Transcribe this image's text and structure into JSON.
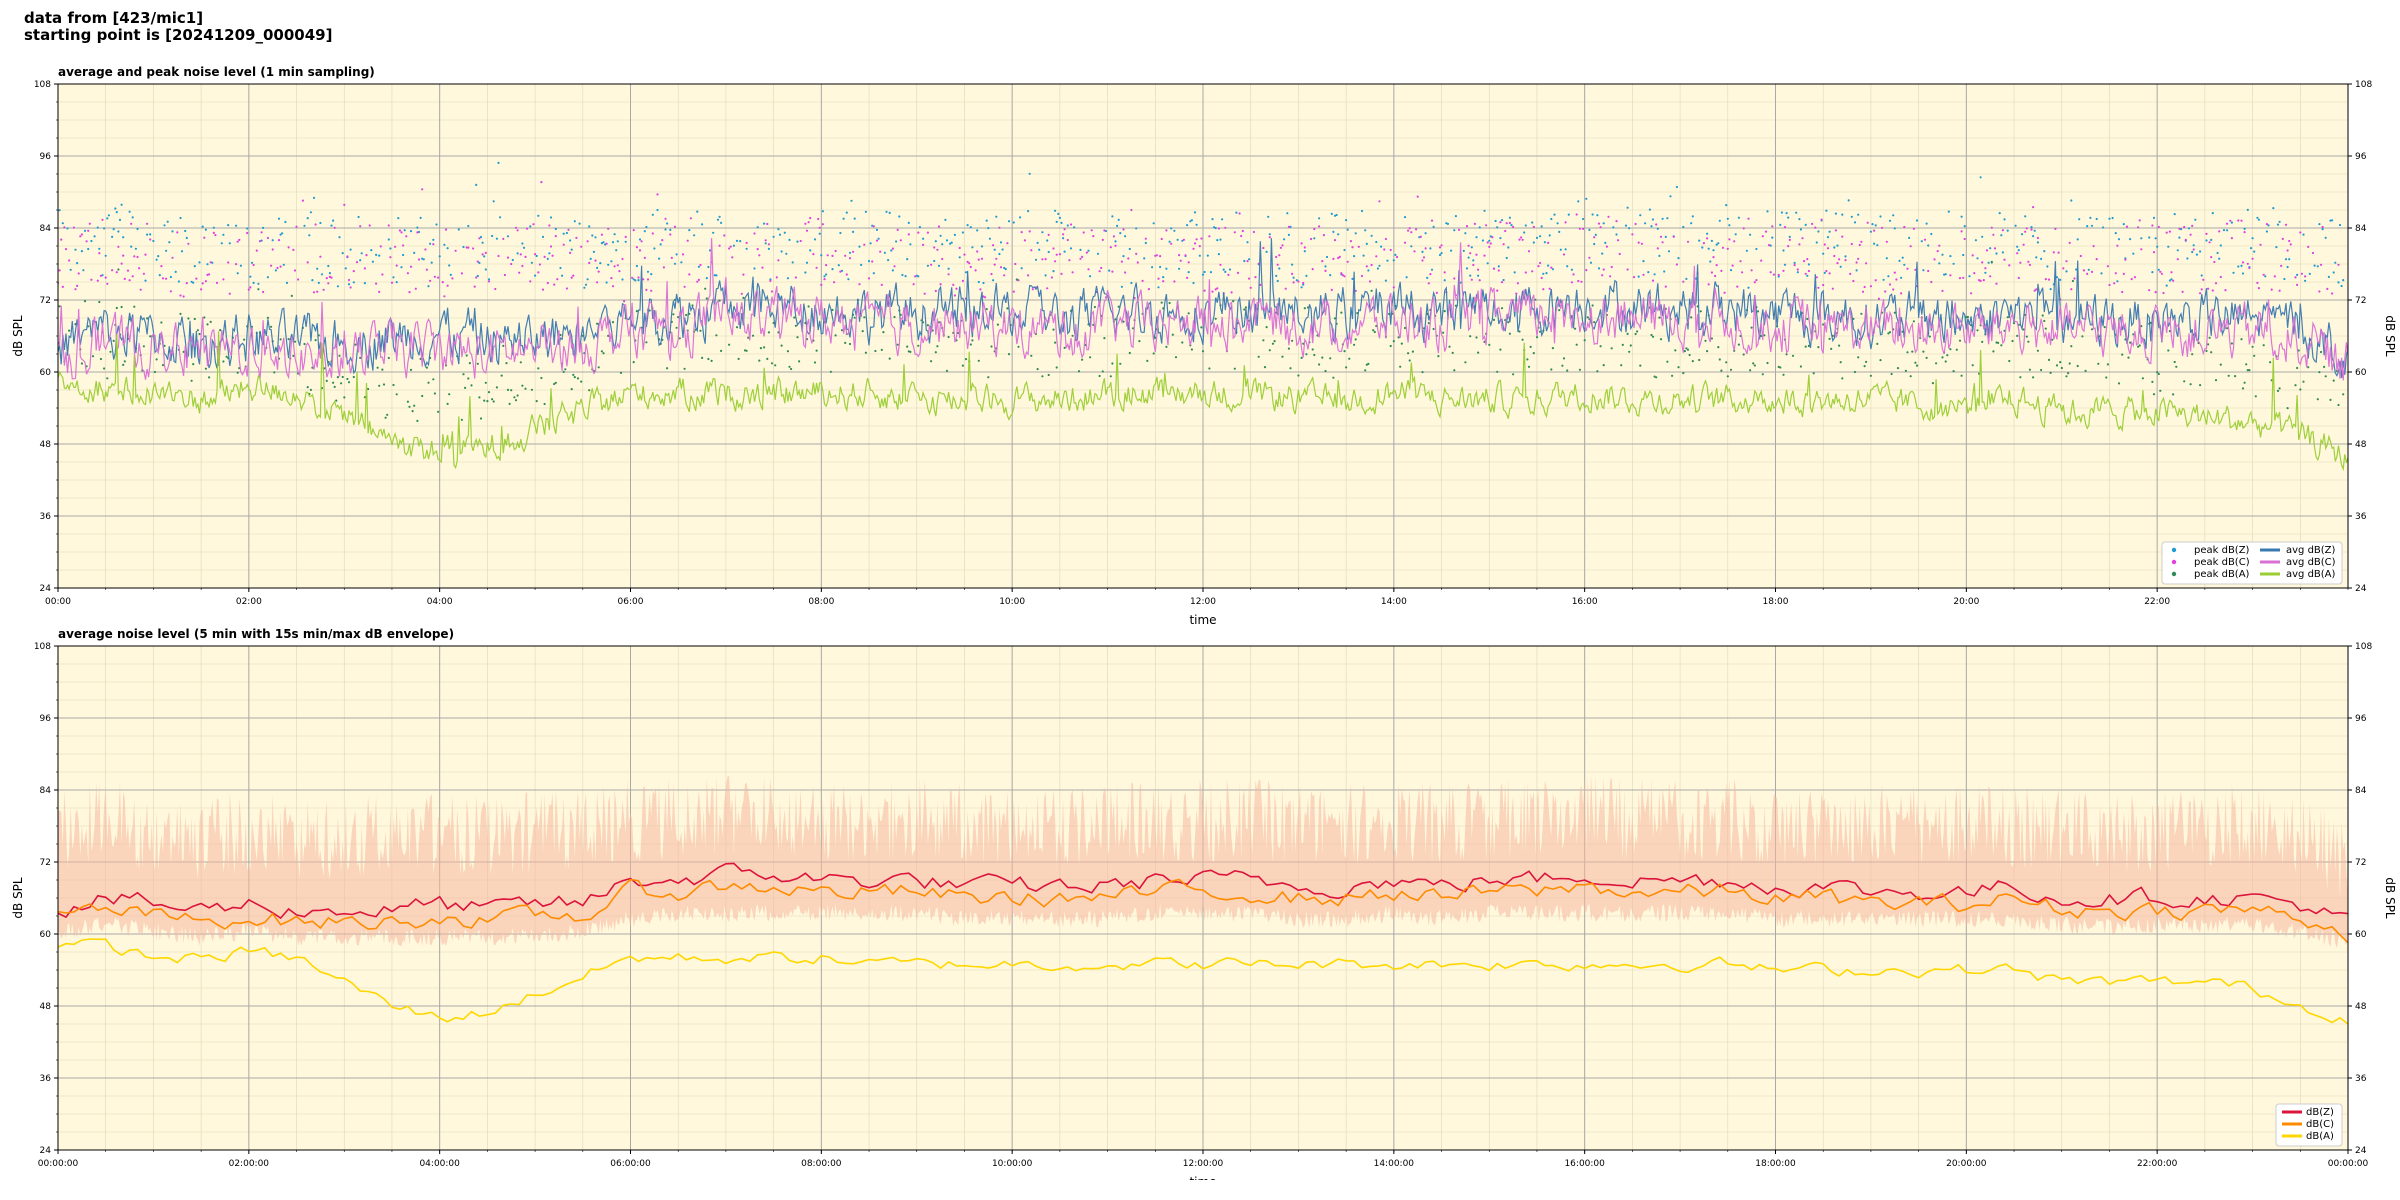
{
  "header": {
    "line1": "data from [423/mic1]",
    "line2": "starting point is [20241209_000049]"
  },
  "chart_data": [
    {
      "type": "line",
      "title": "average and peak noise level (1 min sampling)",
      "xlabel": "time",
      "ylabel": "dB SPL",
      "xlim": [
        0,
        24
      ],
      "ylim": [
        24,
        108
      ],
      "yticks": [
        24,
        36,
        48,
        60,
        72,
        84,
        96,
        108
      ],
      "xticks": [
        "00:00",
        "02:00",
        "04:00",
        "06:00",
        "08:00",
        "10:00",
        "12:00",
        "14:00",
        "16:00",
        "18:00",
        "20:00",
        "22:00"
      ],
      "grid": true,
      "background": "#fff8dc",
      "legend_position": "lower-right",
      "x_hours": [
        0,
        0.5,
        1,
        1.5,
        2,
        2.5,
        3,
        3.5,
        4,
        4.5,
        5,
        5.5,
        6,
        6.5,
        7,
        7.5,
        8,
        8.5,
        9,
        9.5,
        10,
        10.5,
        11,
        11.5,
        12,
        12.5,
        13,
        13.5,
        14,
        14.5,
        15,
        15.5,
        16,
        16.5,
        17,
        17.5,
        18,
        18.5,
        19,
        19.5,
        20,
        20.5,
        21,
        21.5,
        22,
        22.5,
        23,
        23.5,
        24
      ],
      "series": [
        {
          "name": "peak dB(Z)",
          "kind": "scatter",
          "color": "#1f9bd1",
          "values": [
            80,
            82,
            81,
            79,
            80,
            81,
            80,
            81,
            80,
            80,
            81,
            80,
            81,
            82,
            81,
            81,
            82,
            81,
            81,
            80,
            81,
            81,
            80,
            80,
            81,
            81,
            80,
            81,
            81,
            80,
            81,
            81,
            83,
            82,
            81,
            82,
            81,
            81,
            80,
            81,
            81,
            81,
            80,
            80,
            81,
            81,
            82,
            81,
            80
          ]
        },
        {
          "name": "peak dB(C)",
          "kind": "scatter",
          "color": "#e040e0",
          "values": [
            78,
            80,
            79,
            77,
            78,
            79,
            78,
            79,
            78,
            78,
            79,
            78,
            79,
            80,
            79,
            79,
            80,
            79,
            79,
            78,
            79,
            79,
            78,
            78,
            79,
            79,
            78,
            79,
            79,
            78,
            79,
            79,
            81,
            80,
            79,
            80,
            79,
            79,
            78,
            79,
            79,
            79,
            78,
            78,
            79,
            79,
            80,
            79,
            78
          ]
        },
        {
          "name": "peak dB(A)",
          "kind": "scatter",
          "color": "#2e8b57",
          "values": [
            66,
            66,
            65,
            64,
            64,
            62,
            60,
            58,
            57,
            58,
            60,
            62,
            66,
            66,
            67,
            66,
            66,
            66,
            65,
            65,
            65,
            65,
            65,
            66,
            66,
            66,
            65,
            65,
            65,
            65,
            66,
            65,
            66,
            65,
            65,
            65,
            65,
            65,
            64,
            64,
            64,
            65,
            63,
            63,
            62,
            62,
            62,
            61,
            60
          ]
        },
        {
          "name": "avg dB(Z)",
          "kind": "line",
          "color": "#3a78b0",
          "values": [
            64,
            66,
            65,
            64,
            65,
            64,
            64,
            65,
            66,
            64,
            65,
            66,
            68,
            69,
            70,
            70,
            70,
            69,
            69,
            69,
            69,
            68,
            69,
            69,
            70,
            70,
            69,
            69,
            70,
            69,
            70,
            70,
            71,
            70,
            70,
            70,
            69,
            69,
            68,
            68,
            68,
            69,
            68,
            68,
            68,
            68,
            68,
            67,
            62
          ]
        },
        {
          "name": "avg dB(C)",
          "kind": "line",
          "color": "#da70d6",
          "values": [
            62,
            64,
            63,
            62,
            63,
            62,
            62,
            63,
            63,
            62,
            63,
            64,
            66,
            67,
            68,
            68,
            68,
            67,
            67,
            67,
            67,
            66,
            67,
            67,
            68,
            68,
            67,
            67,
            68,
            67,
            68,
            68,
            69,
            68,
            68,
            68,
            67,
            67,
            66,
            66,
            66,
            67,
            66,
            66,
            66,
            66,
            66,
            65,
            60
          ]
        },
        {
          "name": "avg dB(A)",
          "kind": "line",
          "color": "#9acd32",
          "values": [
            58,
            57,
            56,
            55,
            57,
            56,
            52,
            48,
            46,
            47,
            50,
            53,
            56,
            56,
            56,
            56,
            56,
            56,
            55,
            55,
            55,
            55,
            56,
            56,
            56,
            56,
            55,
            55,
            56,
            55,
            55,
            55,
            56,
            55,
            55,
            55,
            55,
            55,
            55,
            54,
            54,
            55,
            53,
            53,
            53,
            52,
            51,
            49,
            45
          ]
        }
      ]
    },
    {
      "type": "line",
      "title": "average noise level (5 min with 15s min/max dB envelope)",
      "xlabel": "time",
      "ylabel": "dB SPL",
      "xlim": [
        0,
        24
      ],
      "ylim": [
        24,
        108
      ],
      "yticks": [
        24,
        36,
        48,
        60,
        72,
        84,
        96,
        108
      ],
      "xticks": [
        "00:00:00",
        "02:00:00",
        "04:00:00",
        "06:00:00",
        "08:00:00",
        "10:00:00",
        "12:00:00",
        "14:00:00",
        "16:00:00",
        "18:00:00",
        "20:00:00",
        "22:00:00",
        "00:00:00"
      ],
      "grid": true,
      "background": "#fff8dc",
      "legend_position": "lower-right",
      "envelope_color": "#f5b7a0",
      "x_hours": [
        0,
        0.5,
        1,
        1.5,
        2,
        2.5,
        3,
        3.5,
        4,
        4.5,
        5,
        5.5,
        6,
        6.5,
        7,
        7.5,
        8,
        8.5,
        9,
        9.5,
        10,
        10.5,
        11,
        11.5,
        12,
        12.5,
        13,
        13.5,
        14,
        14.5,
        15,
        15.5,
        16,
        16.5,
        17,
        17.5,
        18,
        18.5,
        19,
        19.5,
        20,
        20.5,
        21,
        21.5,
        22,
        22.5,
        23,
        23.5,
        24
      ],
      "envelope_min": [
        59,
        60,
        59,
        58,
        59,
        58,
        58,
        58,
        58,
        58,
        58,
        59,
        61,
        62,
        62,
        62,
        62,
        62,
        62,
        61,
        61,
        61,
        61,
        62,
        62,
        62,
        61,
        61,
        62,
        61,
        62,
        62,
        62,
        62,
        62,
        62,
        61,
        61,
        61,
        61,
        61,
        61,
        60,
        60,
        60,
        60,
        60,
        59,
        57
      ],
      "envelope_max": [
        84,
        86,
        84,
        83,
        84,
        83,
        83,
        84,
        84,
        83,
        84,
        84,
        86,
        86,
        87,
        87,
        86,
        86,
        86,
        85,
        85,
        85,
        85,
        86,
        86,
        86,
        85,
        85,
        86,
        85,
        86,
        86,
        87,
        86,
        86,
        86,
        85,
        85,
        85,
        85,
        85,
        85,
        84,
        84,
        84,
        85,
        85,
        84,
        78
      ],
      "series": [
        {
          "name": "dB(Z)",
          "color": "#dc143c",
          "values": [
            64,
            66,
            65,
            64,
            65,
            64,
            64,
            64,
            65,
            64,
            65,
            65,
            69,
            69,
            70,
            70,
            69,
            69,
            69,
            68,
            68,
            68,
            68,
            69,
            69,
            69,
            68,
            68,
            69,
            68,
            69,
            69,
            70,
            69,
            69,
            69,
            68,
            68,
            67,
            67,
            67,
            68,
            66,
            66,
            66,
            66,
            66,
            65,
            62
          ]
        },
        {
          "name": "dB(C)",
          "color": "#ff8c00",
          "values": [
            63,
            64,
            63,
            62,
            63,
            62,
            62,
            62,
            63,
            62,
            63,
            63,
            67,
            67,
            68,
            68,
            67,
            67,
            67,
            66,
            66,
            66,
            66,
            67,
            67,
            67,
            66,
            66,
            67,
            66,
            67,
            67,
            68,
            67,
            67,
            67,
            66,
            66,
            65,
            65,
            65,
            66,
            64,
            64,
            64,
            64,
            64,
            63,
            60
          ]
        },
        {
          "name": "dB(A)",
          "color": "#ffd700",
          "values": [
            58,
            58,
            56,
            56,
            57,
            56,
            52,
            48,
            46,
            47,
            50,
            53,
            56,
            56,
            56,
            56,
            56,
            55,
            55,
            55,
            55,
            55,
            55,
            55,
            55,
            55,
            55,
            55,
            55,
            55,
            55,
            55,
            55,
            55,
            55,
            55,
            54,
            54,
            54,
            54,
            54,
            54,
            52,
            52,
            52,
            52,
            51,
            48,
            46
          ]
        }
      ]
    }
  ]
}
